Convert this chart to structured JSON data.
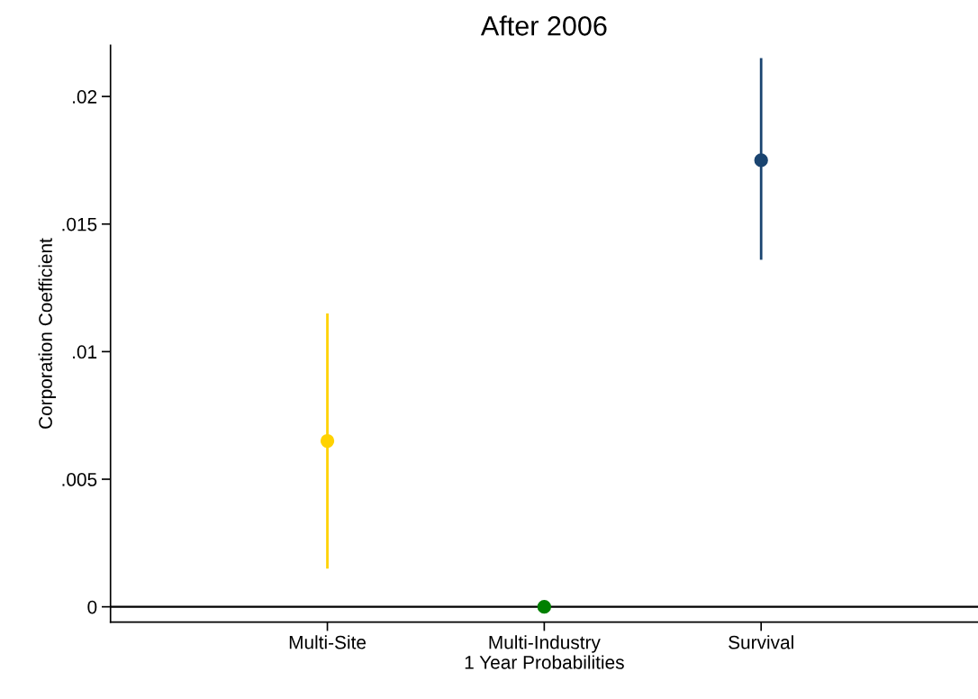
{
  "chart_data": {
    "type": "scatter",
    "title": "After 2006",
    "xlabel": "1 Year Probabilities",
    "ylabel": "Corporation Coefficient",
    "categories": [
      "Multi-Site",
      "Multi-Industry",
      "Survival"
    ],
    "values": [
      0.0065,
      0,
      0.0175
    ],
    "errors": [
      [
        0.0015,
        0.0115
      ],
      null,
      [
        0.0136,
        0.0215
      ]
    ],
    "colors": [
      "#ffd200",
      "#008000",
      "#1a4470"
    ],
    "ylim": [
      -0.0006,
      0.022
    ],
    "yticks": [
      {
        "value": 0,
        "label": "0"
      },
      {
        "value": 0.005,
        "label": ".005"
      },
      {
        "value": 0.01,
        "label": ".01"
      },
      {
        "value": 0.015,
        "label": ".015"
      },
      {
        "value": 0.02,
        "label": ".02"
      }
    ],
    "ref_lines": [
      {
        "axis": "y",
        "value": 0,
        "color": "#000000"
      }
    ],
    "marker": "circle",
    "grid": false,
    "legend": false
  }
}
